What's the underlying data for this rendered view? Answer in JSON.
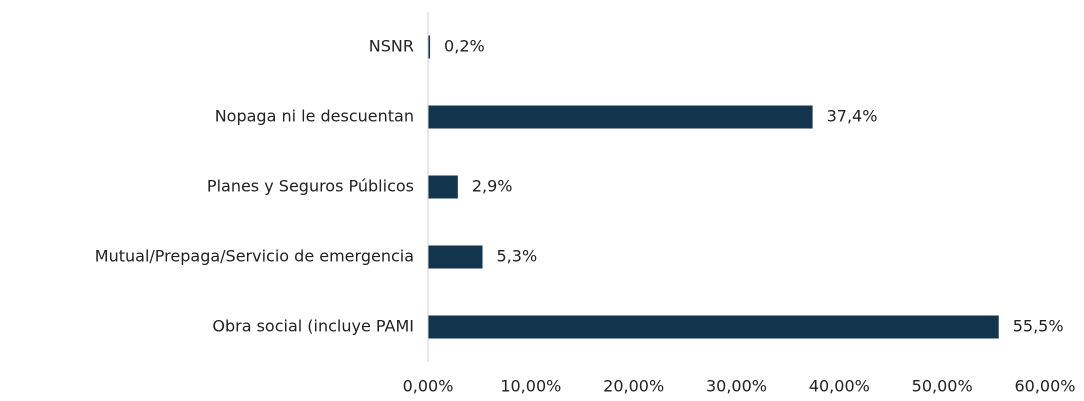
{
  "chart_data": {
    "type": "barh",
    "categories": [
      "NSNR",
      "Nopaga ni le descuentan",
      "Planes y Seguros Públicos",
      "Mutual/Prepaga/Servicio de emergencia",
      "Obra social (incluye PAMI"
    ],
    "values": [
      0.2,
      37.4,
      2.9,
      5.3,
      55.5
    ],
    "value_labels": [
      "0,2%",
      "37,4%",
      "2,9%",
      "5,3%",
      "55,5%"
    ],
    "color": "#12344d",
    "xlim": [
      0,
      60
    ],
    "xticks": [
      {
        "value": 0,
        "label": "0,00%"
      },
      {
        "value": 10,
        "label": "10,00%"
      },
      {
        "value": 20,
        "label": "20,00%"
      },
      {
        "value": 30,
        "label": "30,00%"
      },
      {
        "value": 40,
        "label": "40,00%"
      },
      {
        "value": 50,
        "label": "50,00%"
      },
      {
        "value": 60,
        "label": "60,00%"
      }
    ],
    "grid": false
  }
}
